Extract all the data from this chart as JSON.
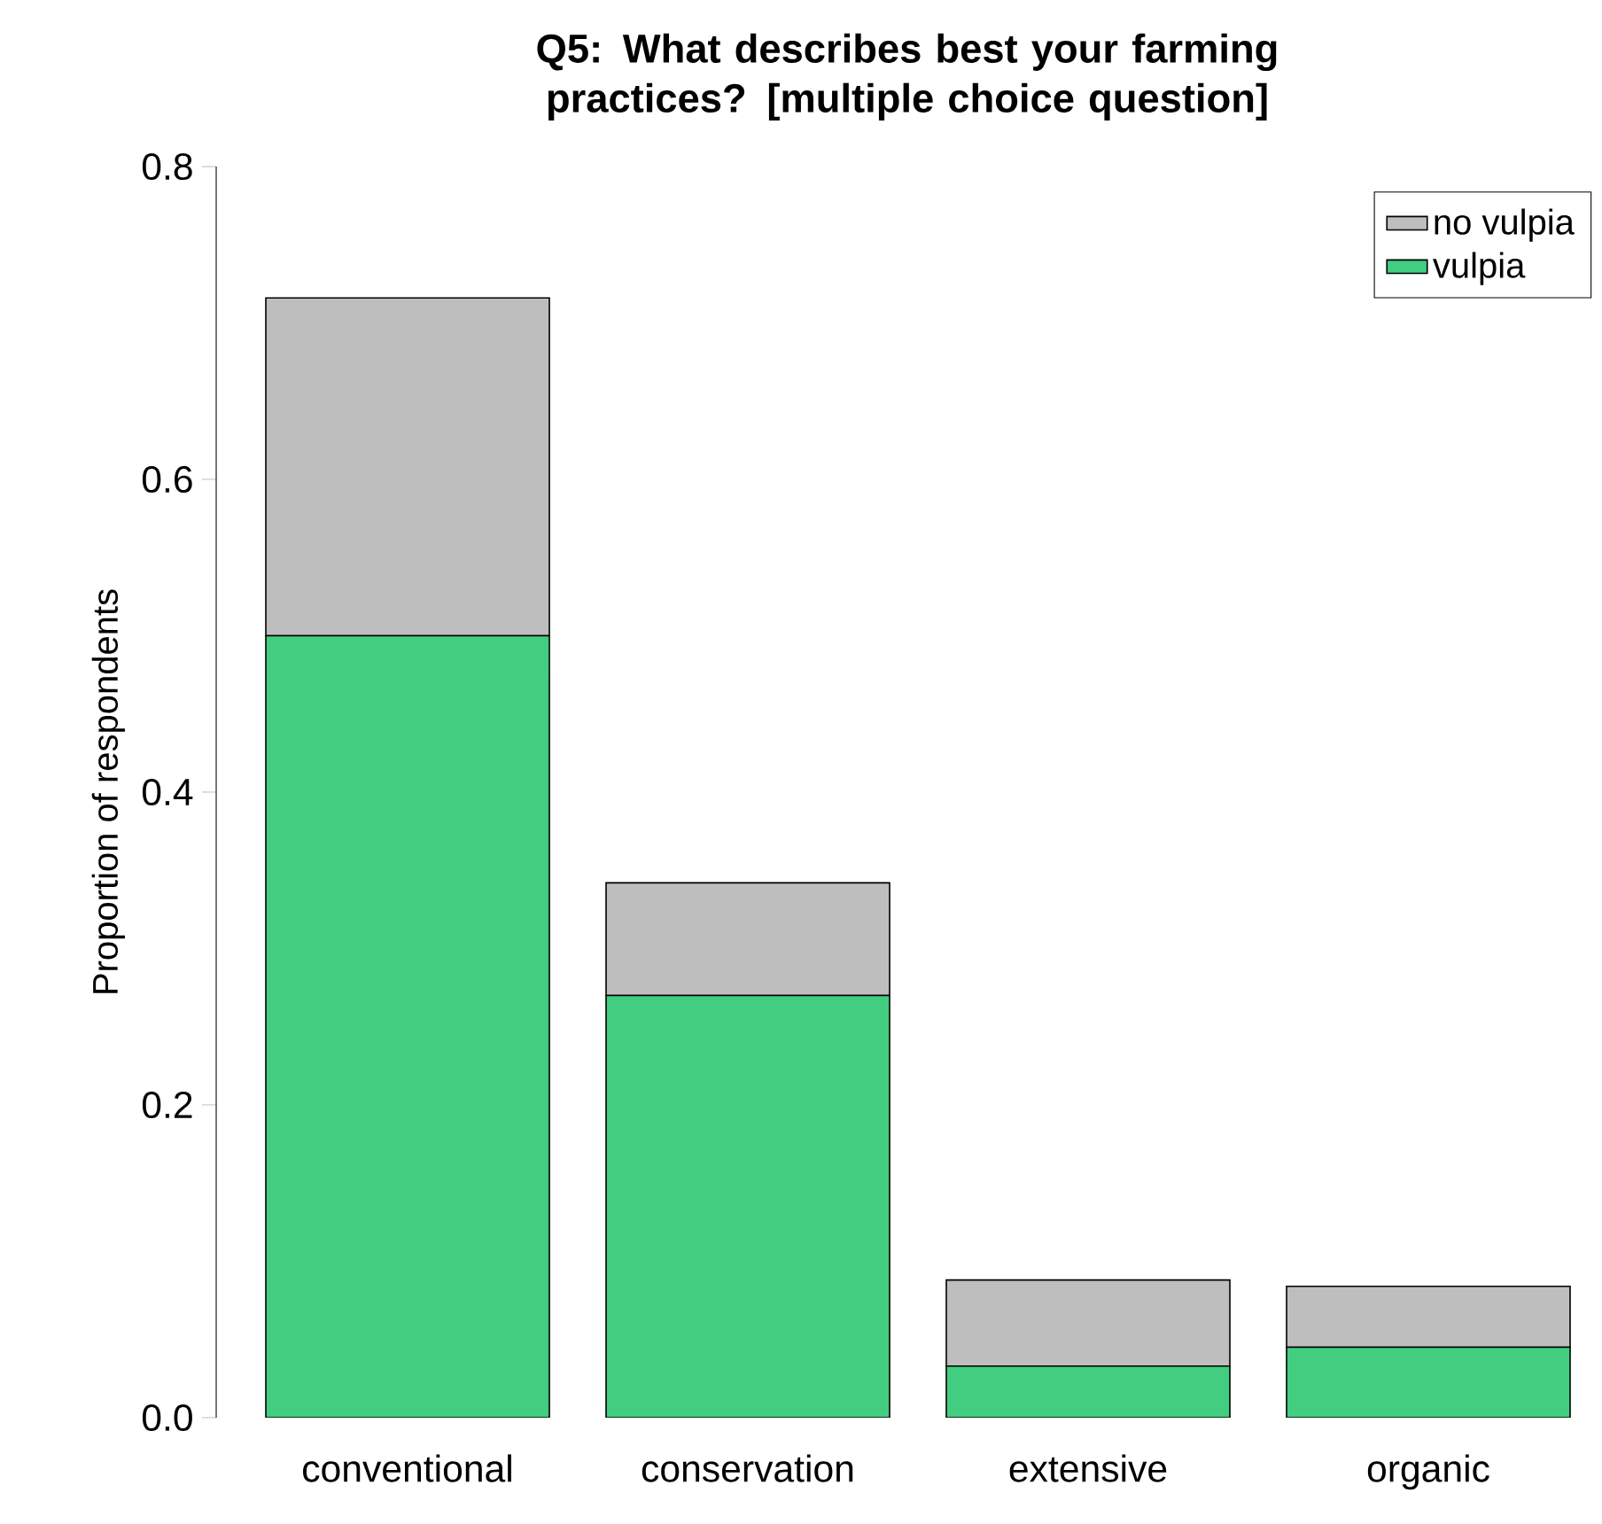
{
  "chart_data": {
    "type": "bar",
    "title": "Q5: What describes best your farming practices? [multiple choice question]",
    "ylabel": "Proportion of respondents",
    "categories": [
      "conventional",
      "conservation",
      "extensive",
      "organic"
    ],
    "stacked": true,
    "series": [
      {
        "name": "vulpia",
        "color": "#42cd80",
        "values": [
          0.5,
          0.27,
          0.033,
          0.045
        ]
      },
      {
        "name": "no vulpia",
        "color": "#bebebe",
        "values": [
          0.216,
          0.072,
          0.055,
          0.039
        ]
      }
    ],
    "ylim": [
      0,
      0.8
    ],
    "yticks": [
      {
        "value": 0,
        "label": "0.0"
      },
      0.2,
      0.4,
      0.6,
      0.8
    ],
    "legend": "top right"
  }
}
